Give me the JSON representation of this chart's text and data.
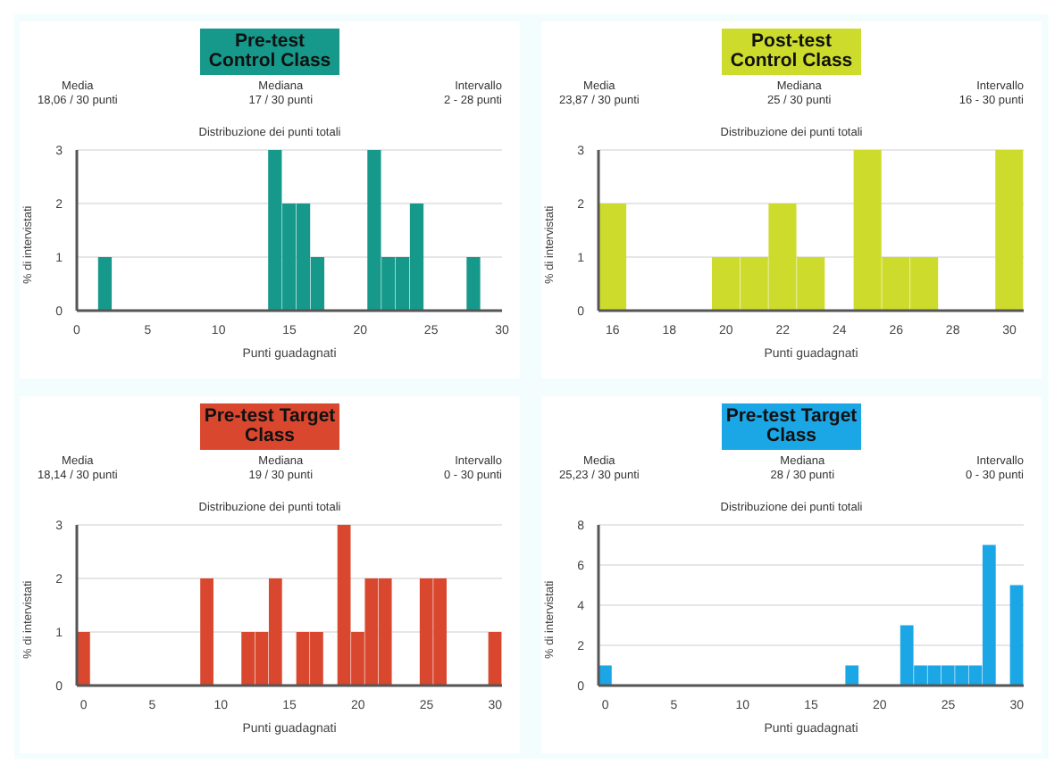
{
  "chart_data": [
    {
      "type": "histogram",
      "title": "Pre-test Control Class",
      "subtitle": "Distribuzione dei punti totali",
      "xlabel": "Punti guadagnati",
      "ylabel": "% di intervistati",
      "annotations": [
        "Media",
        "18,06 / 30 punti",
        "Mediana",
        "17 / 30 punti",
        "Intervallo",
        "2 - 28 punti"
      ],
      "color": "#16998a",
      "bins": [
        1.5,
        2.5,
        3.5,
        4.5,
        5.5,
        6.5,
        7.5,
        8.5,
        9.5,
        10.5,
        11.5,
        12.5,
        13.5,
        14.5,
        15.5,
        16.5,
        17.5,
        18.5,
        19.5,
        20.5,
        21.5,
        22.5,
        23.5,
        24.5,
        25.5,
        26.5,
        27.5,
        28.5
      ],
      "values": [
        1,
        0,
        0,
        0,
        0,
        0,
        0,
        0,
        0,
        0,
        0,
        0,
        3,
        2,
        2,
        1,
        0,
        0,
        0,
        3,
        1,
        1,
        2,
        0,
        0,
        0,
        1
      ],
      "xlim": [
        0,
        30
      ],
      "xticks": [
        0,
        5,
        10,
        15,
        20,
        25,
        30
      ],
      "ylim": [
        0,
        3
      ],
      "yticks": [
        0,
        1,
        2,
        3
      ],
      "grid": "y"
    },
    {
      "type": "histogram",
      "title": "Post-test Control Class",
      "subtitle": "Distribuzione dei punti totali",
      "xlabel": "Punti guadagnati",
      "ylabel": "% di intervistati",
      "annotations": [
        "Media",
        "23,87 / 30 punti",
        "Mediana",
        "25 / 30 punti",
        "Intervallo",
        "16 - 30 punti"
      ],
      "color": "#cddc2c",
      "bins": [
        15.5,
        16.5,
        17.5,
        18.5,
        19.5,
        20.5,
        21.5,
        22.5,
        23.5,
        24.5,
        25.5,
        26.5,
        27.5,
        28.5,
        29.5,
        30.5
      ],
      "values": [
        2,
        0,
        0,
        0,
        1,
        1,
        2,
        1,
        0,
        3,
        1,
        1,
        0,
        0,
        3
      ],
      "xlim": [
        15.5,
        30.5
      ],
      "xticks": [
        16,
        18,
        20,
        22,
        24,
        26,
        28,
        30
      ],
      "ylim": [
        0,
        3
      ],
      "yticks": [
        0,
        1,
        2,
        3
      ],
      "grid": "y"
    },
    {
      "type": "histogram",
      "title": "Pre-test Target Class",
      "subtitle": "Distribuzione dei punti totali",
      "xlabel": "Punti guadagnati",
      "ylabel": "% di intervistati",
      "annotations": [
        "Media",
        "18,14 / 30 punti",
        "Mediana",
        "19 / 30 punti",
        "Intervallo",
        "0 - 30 punti"
      ],
      "color": "#d9472f",
      "bins": [
        -0.5,
        0.5,
        1.5,
        2.5,
        3.5,
        4.5,
        5.5,
        6.5,
        7.5,
        8.5,
        9.5,
        10.5,
        11.5,
        12.5,
        13.5,
        14.5,
        15.5,
        16.5,
        17.5,
        18.5,
        19.5,
        20.5,
        21.5,
        22.5,
        23.5,
        24.5,
        25.5,
        26.5,
        27.5,
        28.5,
        29.5,
        30.5
      ],
      "values": [
        1,
        0,
        0,
        0,
        0,
        0,
        0,
        0,
        0,
        2,
        0,
        0,
        1,
        1,
        2,
        0,
        1,
        1,
        0,
        3,
        1,
        2,
        2,
        0,
        0,
        2,
        2,
        0,
        0,
        0,
        1
      ],
      "xlim": [
        -0.5,
        30.5
      ],
      "xticks": [
        0,
        5,
        10,
        15,
        20,
        25,
        30
      ],
      "ylim": [
        0,
        3
      ],
      "yticks": [
        0,
        1,
        2,
        3
      ],
      "grid": "y"
    },
    {
      "type": "histogram",
      "title": "Pre-test Target Class",
      "subtitle": "Distribuzione dei punti totali",
      "xlabel": "Punti guadagnati",
      "ylabel": "% di intervistati",
      "annotations": [
        "Media",
        "25,23 / 30 punti",
        "Mediana",
        "28 / 30 punti",
        "Intervallo",
        "0 - 30 punti"
      ],
      "color": "#1ba6e6",
      "bins": [
        -0.5,
        0.5,
        1.5,
        2.5,
        3.5,
        4.5,
        5.5,
        6.5,
        7.5,
        8.5,
        9.5,
        10.5,
        11.5,
        12.5,
        13.5,
        14.5,
        15.5,
        16.5,
        17.5,
        18.5,
        19.5,
        20.5,
        21.5,
        22.5,
        23.5,
        24.5,
        25.5,
        26.5,
        27.5,
        28.5,
        29.5,
        30.5
      ],
      "values": [
        1,
        0,
        0,
        0,
        0,
        0,
        0,
        0,
        0,
        0,
        0,
        0,
        0,
        0,
        0,
        0,
        0,
        0,
        1,
        0,
        0,
        0,
        3,
        1,
        1,
        1,
        1,
        1,
        7,
        0,
        5
      ],
      "xlim": [
        -0.5,
        30.5
      ],
      "xticks": [
        0,
        5,
        10,
        15,
        20,
        25,
        30
      ],
      "ylim": [
        0,
        8
      ],
      "yticks": [
        0,
        2,
        4,
        6,
        8
      ],
      "grid": "y"
    }
  ]
}
